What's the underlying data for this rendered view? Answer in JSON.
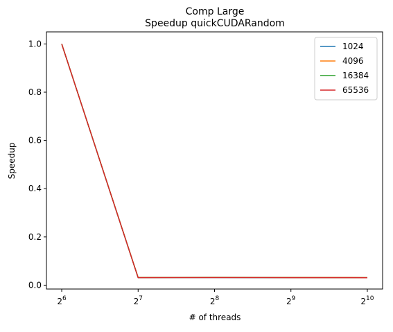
{
  "chart_data": {
    "type": "line",
    "title": "Comp Large",
    "subtitle": "Speedup quickCUDARandom",
    "xlabel": "# of threads",
    "ylabel": "Speedup",
    "x_scale": "log2",
    "x": [
      64,
      128,
      256,
      512,
      1024
    ],
    "xticks": [
      {
        "value": 64,
        "base": "2",
        "exp": "6"
      },
      {
        "value": 128,
        "base": "2",
        "exp": "7"
      },
      {
        "value": 256,
        "base": "2",
        "exp": "8"
      },
      {
        "value": 512,
        "base": "2",
        "exp": "9"
      },
      {
        "value": 1024,
        "base": "2",
        "exp": "10"
      }
    ],
    "yticks": [
      "0.0",
      "0.2",
      "0.4",
      "0.6",
      "0.8",
      "1.0"
    ],
    "ylim": [
      -0.016,
      1.05
    ],
    "grid": false,
    "legend_position": "top-right",
    "series": [
      {
        "name": "1024",
        "color": "#1f77b4",
        "values": [
          1.0,
          0.031,
          0.0315,
          0.031,
          0.031
        ]
      },
      {
        "name": "4096",
        "color": "#ff7f0e",
        "values": [
          1.0,
          0.032,
          0.0325,
          0.032,
          0.0315
        ]
      },
      {
        "name": "16384",
        "color": "#2ca02c",
        "values": [
          1.0,
          0.0315,
          0.032,
          0.0315,
          0.031
        ]
      },
      {
        "name": "65536",
        "color": "#d62728",
        "values": [
          1.0,
          0.031,
          0.0315,
          0.0312,
          0.0308
        ]
      }
    ]
  }
}
